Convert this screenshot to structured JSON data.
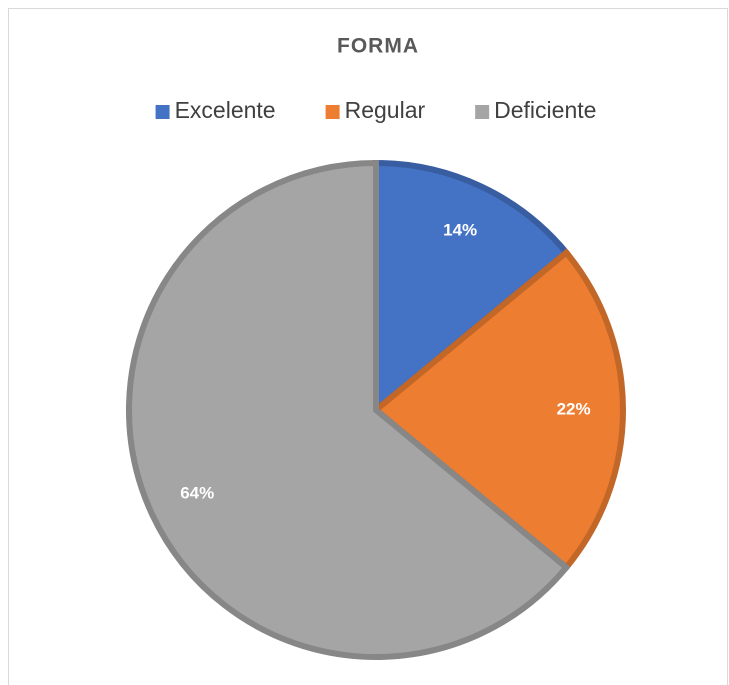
{
  "chart_data": {
    "type": "pie",
    "title": "FORMA",
    "categories": [
      "Excelente",
      "Regular",
      "Deficiente"
    ],
    "values": [
      14,
      22,
      64
    ],
    "value_labels": [
      "14%",
      "22%",
      "64%"
    ],
    "colors": [
      "#4472c4",
      "#ed7d31",
      "#a5a5a5"
    ],
    "legend": "top"
  }
}
